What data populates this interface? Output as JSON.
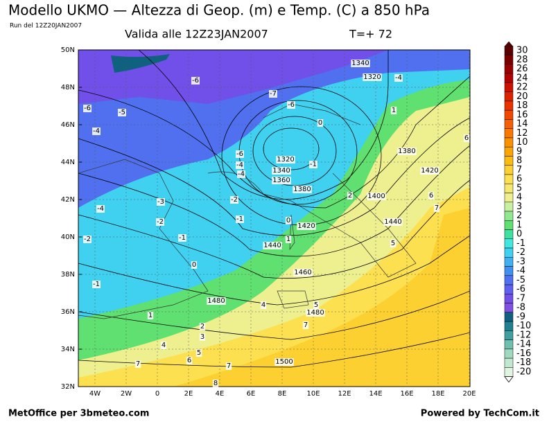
{
  "header": {
    "title": "Modello UKMO — Altezza di Geop. (m) e Temp. (C) a 850 hPa",
    "run": "Run del 12Z20JAN2007",
    "valid": "Valida alle 12Z23JAN2007",
    "forecast": "T=+ 72"
  },
  "map": {
    "lat_labels": [
      "50N",
      "48N",
      "46N",
      "44N",
      "42N",
      "40N",
      "38N",
      "36N",
      "34N",
      "32N"
    ],
    "lon_labels": [
      "4W",
      "2W",
      "0",
      "2E",
      "4E",
      "6E",
      "8E",
      "10E",
      "12E",
      "14E",
      "16E",
      "18E",
      "20E"
    ]
  },
  "colorbar": {
    "labels": [
      30,
      28,
      26,
      24,
      22,
      20,
      18,
      16,
      14,
      12,
      10,
      9,
      8,
      7,
      6,
      5,
      4,
      3,
      2,
      1,
      0,
      -1,
      -2,
      -3,
      -4,
      -5,
      -6,
      -7,
      -8,
      -9,
      -10,
      -12,
      -14,
      -16,
      -18,
      -20
    ],
    "colors": [
      "#5a0000",
      "#7a0000",
      "#990000",
      "#b30000",
      "#cc1100",
      "#dd2200",
      "#e83300",
      "#f04800",
      "#f56000",
      "#f87800",
      "#f99000",
      "#faa500",
      "#fbbb10",
      "#fcd030",
      "#fde050",
      "#f5e870",
      "#eef090",
      "#c8f0a0",
      "#90e890",
      "#60e070",
      "#40e0a0",
      "#40e8e0",
      "#40d0f0",
      "#40b0f0",
      "#4090f0",
      "#5070f0",
      "#6060f0",
      "#7050e8",
      "#8050e0",
      "#106080",
      "#208090",
      "#40a0a0",
      "#70c0b0",
      "#a0d8c0",
      "#c0e8d0",
      "#e0f4e0"
    ]
  },
  "contour_labels": [
    1340,
    1320,
    -4,
    -6,
    -7,
    -6,
    -5,
    -6,
    -4,
    0,
    1,
    -6,
    -4,
    -4,
    1320,
    1340,
    1360,
    -1,
    1380,
    1380,
    1420,
    1420,
    1400,
    2,
    -2,
    -3,
    -4,
    -2,
    -1,
    -2,
    -1,
    0,
    1440,
    1440,
    0,
    1,
    1460,
    1480,
    1480,
    4,
    5,
    7,
    1,
    2,
    3,
    4,
    5,
    6,
    7,
    7,
    1500,
    8,
    5,
    6,
    7,
    6,
    -1
  ],
  "footer": {
    "left": "MetOffice per 3bmeteo.com",
    "right": "Powered by TechCom.it"
  }
}
